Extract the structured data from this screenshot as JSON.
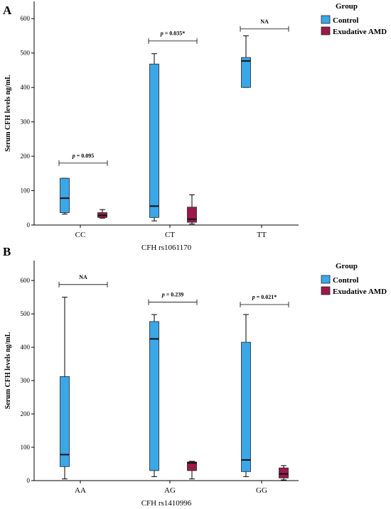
{
  "legend_title": "Group",
  "colors": {
    "Control": "#3aa7e8",
    "Exudative AMD": "#9b1a4b"
  },
  "chart_data": [
    {
      "type": "box",
      "panel": "A",
      "xlabel": "CFH rs1061170",
      "ylabel": "Serum CFH levels ng/mL",
      "ylim": [
        0,
        650
      ],
      "yticks": [
        0,
        100,
        200,
        300,
        400,
        500,
        600
      ],
      "categories": [
        "CC",
        "CT",
        "TT"
      ],
      "series": [
        {
          "name": "Control",
          "boxes": [
            {
              "category": "CC",
              "min": 32,
              "q1": 36,
              "median": 78,
              "q3": 136,
              "max": 136
            },
            {
              "category": "CT",
              "min": 12,
              "q1": 22,
              "median": 55,
              "q3": 468,
              "max": 498
            },
            {
              "category": "TT",
              "min": 400,
              "q1": 400,
              "median": 477,
              "q3": 487,
              "max": 550
            }
          ]
        },
        {
          "name": "Exudative AMD",
          "boxes": [
            {
              "category": "CC",
              "min": 20,
              "q1": 22,
              "median": 28,
              "q3": 36,
              "max": 45
            },
            {
              "category": "CT",
              "min": 3,
              "q1": 8,
              "median": 17,
              "q3": 52,
              "max": 88
            }
          ]
        }
      ],
      "annotations": [
        {
          "category": "CC",
          "level": 180,
          "p": "p",
          "text": "= 0.095"
        },
        {
          "category": "CT",
          "level": 535,
          "p": "p",
          "text": "= 0.035*"
        },
        {
          "category": "TT",
          "level": 570,
          "p": "",
          "text": "NA"
        }
      ]
    },
    {
      "type": "box",
      "panel": "B",
      "xlabel": "CFH rs1410996",
      "ylabel": "Serum CFH levels ng/mL",
      "ylim": [
        0,
        660
      ],
      "yticks": [
        0,
        100,
        200,
        300,
        400,
        500,
        600
      ],
      "categories": [
        "AA",
        "AG",
        "GG"
      ],
      "series": [
        {
          "name": "Control",
          "boxes": [
            {
              "category": "AA",
              "min": 5,
              "q1": 42,
              "median": 78,
              "q3": 312,
              "max": 550
            },
            {
              "category": "AG",
              "min": 12,
              "q1": 30,
              "median": 425,
              "q3": 477,
              "max": 498
            },
            {
              "category": "GG",
              "min": 12,
              "q1": 27,
              "median": 62,
              "q3": 415,
              "max": 498
            }
          ]
        },
        {
          "name": "Exudative AMD",
          "boxes": [
            {
              "category": "AG",
              "min": 5,
              "q1": 30,
              "median": 53,
              "q3": 56,
              "max": 58
            },
            {
              "category": "GG",
              "min": 2,
              "q1": 8,
              "median": 20,
              "q3": 38,
              "max": 45
            }
          ]
        }
      ],
      "annotations": [
        {
          "category": "AA",
          "level": 588,
          "p": "",
          "text": "NA"
        },
        {
          "category": "AG",
          "level": 535,
          "p": "p",
          "text": "= 0.239"
        },
        {
          "category": "GG",
          "level": 528,
          "p": "p",
          "text": "= 0.021*"
        }
      ]
    }
  ]
}
